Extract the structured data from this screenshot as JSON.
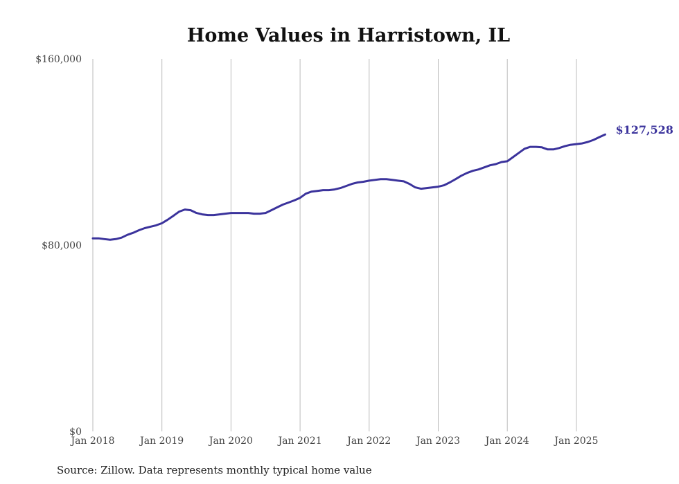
{
  "chart_data": {
    "type": "line",
    "title": "Home Values in Harristown, IL",
    "xlabel": "",
    "ylabel": "",
    "ylim": [
      0,
      160000
    ],
    "y_ticks": [
      {
        "value": 0,
        "label": "$0"
      },
      {
        "value": 80000,
        "label": "$80,000"
      },
      {
        "value": 160000,
        "label": "$160,000"
      }
    ],
    "x_ticks": [
      {
        "value": 2018,
        "label": "Jan 2018"
      },
      {
        "value": 2019,
        "label": "Jan 2019"
      },
      {
        "value": 2020,
        "label": "Jan 2020"
      },
      {
        "value": 2021,
        "label": "Jan 2021"
      },
      {
        "value": 2022,
        "label": "Jan 2022"
      },
      {
        "value": 2023,
        "label": "Jan 2023"
      },
      {
        "value": 2024,
        "label": "Jan 2024"
      },
      {
        "value": 2025,
        "label": "Jan 2025"
      }
    ],
    "grid": "vertical",
    "series": [
      {
        "name": "Typical home value",
        "color": "#3b339c",
        "start": "Jan 2018",
        "frequency": "monthly",
        "values": [
          82900,
          82900,
          82600,
          82300,
          82600,
          83200,
          84400,
          85300,
          86400,
          87300,
          87900,
          88500,
          89400,
          90900,
          92600,
          94400,
          95300,
          95000,
          93800,
          93200,
          92900,
          92900,
          93200,
          93500,
          93800,
          93800,
          93800,
          93800,
          93500,
          93500,
          93800,
          95000,
          96200,
          97400,
          98300,
          99200,
          100300,
          102100,
          103000,
          103300,
          103600,
          103600,
          103900,
          104500,
          105400,
          106300,
          106900,
          107200,
          107700,
          108000,
          108300,
          108300,
          108000,
          107700,
          107400,
          106300,
          104800,
          104200,
          104500,
          104800,
          105100,
          105700,
          106900,
          108300,
          109800,
          111000,
          111900,
          112500,
          113400,
          114300,
          114800,
          115700,
          116000,
          117800,
          119600,
          121400,
          122200,
          122200,
          122000,
          121100,
          121100,
          121700,
          122500,
          123100,
          123400,
          123700,
          124300,
          125200,
          126400,
          127528
        ]
      }
    ],
    "end_label": "$127,528",
    "source": "Source: Zillow. Data represents monthly typical home value"
  }
}
